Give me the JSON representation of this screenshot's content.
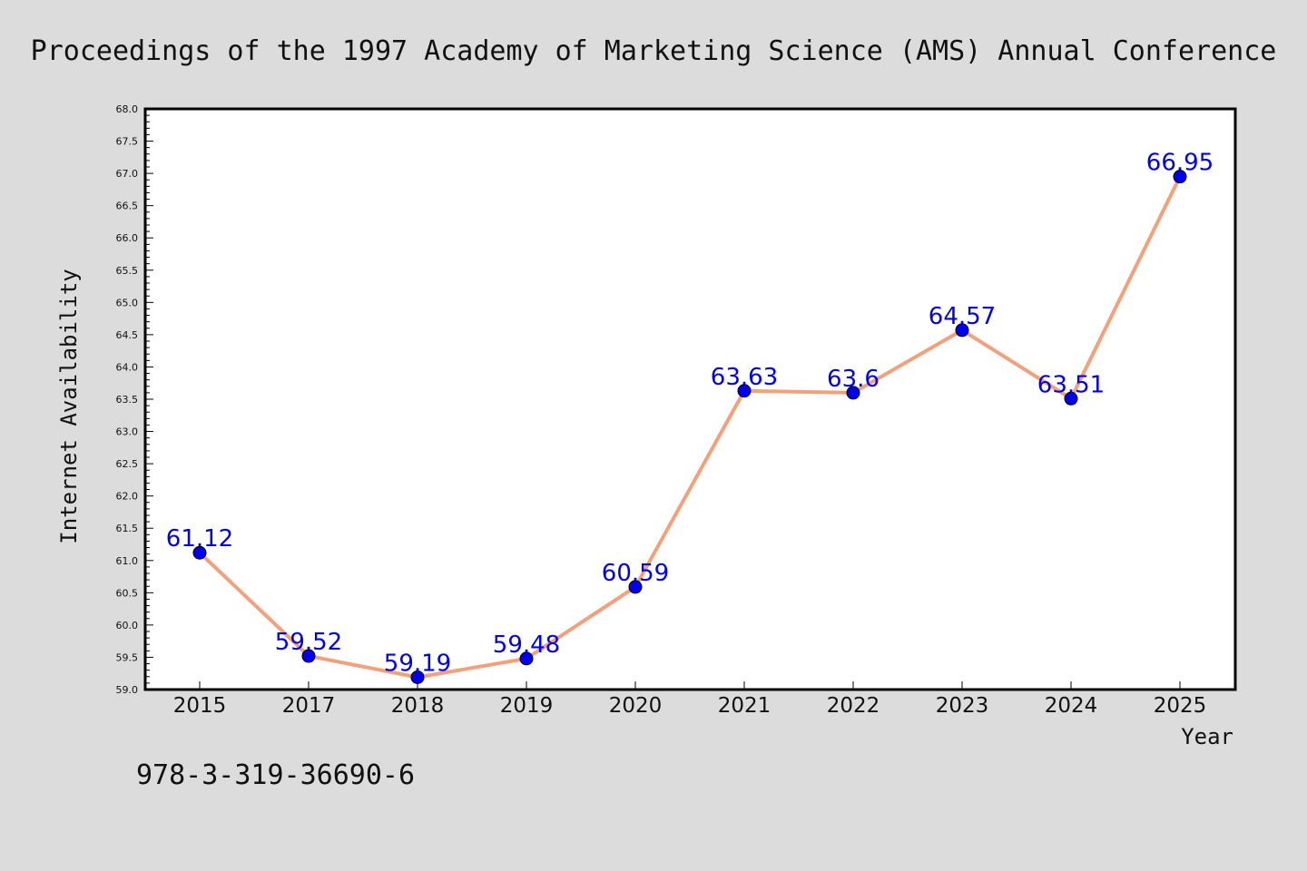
{
  "chart_data": {
    "type": "line",
    "title": "Proceedings of the 1997 Academy of Marketing Science (AMS) Annual Conference",
    "xlabel": "Year",
    "ylabel": "Internet Availability",
    "categories": [
      "2015",
      "2017",
      "2018",
      "2019",
      "2020",
      "2021",
      "2022",
      "2023",
      "2024",
      "2025"
    ],
    "series": [
      {
        "values": [
          61.12,
          59.52,
          59.19,
          59.48,
          60.59,
          63.63,
          63.6,
          64.57,
          63.51,
          66.95
        ],
        "data_labels": [
          "61.12",
          "59.52",
          "59.19",
          "59.48",
          "60.59",
          "63.63",
          "63.6",
          "64.57",
          "63.51",
          "66.95"
        ]
      }
    ],
    "ylim": [
      59.0,
      68.0
    ],
    "yticks": [
      "59.0",
      "59.5",
      "60.0",
      "60.5",
      "61.0",
      "61.5",
      "62.0",
      "62.5",
      "63.0",
      "63.5",
      "64.0",
      "64.5",
      "65.0",
      "65.5",
      "66.0",
      "66.5",
      "67.0",
      "67.5",
      "68.0"
    ],
    "grid": false,
    "colors": {
      "line": "#f4a07a",
      "marker": "#0000ee",
      "label": "#0000ee",
      "plot_background": "#ffffff",
      "figure_background": "#dcdcdc"
    }
  },
  "footer": {
    "isbn": "978-3-319-36690-6"
  }
}
